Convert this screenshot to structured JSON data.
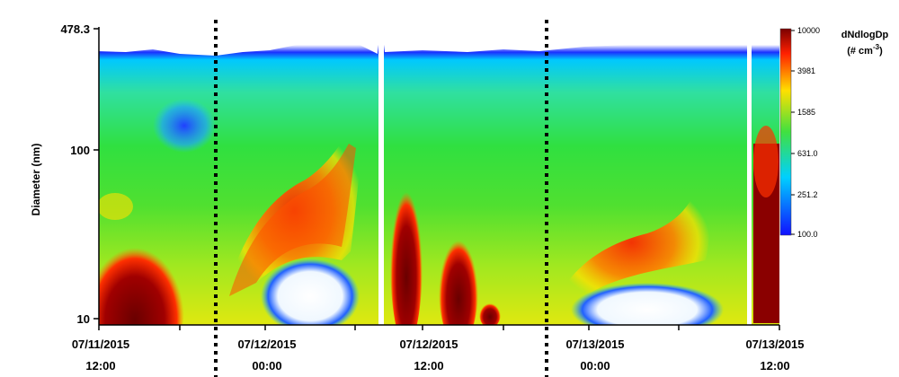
{
  "chart_data": {
    "type": "heatmap",
    "ylabel": "Diameter (nm)",
    "y_scale": "log",
    "ylim": [
      10,
      478.3
    ],
    "y_ticks": [
      "478.3",
      "100",
      "10"
    ],
    "x_ticks": [
      {
        "date": "07/11/2015",
        "time": "12:00"
      },
      {
        "date": "07/12/2015",
        "time": "00:00"
      },
      {
        "date": "07/12/2015",
        "time": "12:00"
      },
      {
        "date": "07/13/2015",
        "time": "00:00"
      },
      {
        "date": "07/13/2015",
        "time": "12:00"
      }
    ],
    "midnight_markers": [
      "07/12/2015 00:00",
      "07/13/2015 00:00"
    ],
    "colorbar": {
      "title_line1": "dNdlogDp",
      "title_line2": "(# cm",
      "title_sup": "-3",
      "title_close": ")",
      "scale": "log",
      "range": [
        100,
        10000
      ],
      "ticks": [
        "10000",
        "3981",
        "1585",
        "631.0",
        "251.2",
        "100.0"
      ]
    },
    "colors": {
      "low": "#1a1aff",
      "mid_low": "#00c8ff",
      "mid": "#20e040",
      "mid_high": "#ffe000",
      "high": "#ff3000",
      "max": "#7a0000",
      "no_data": "#ffffff"
    }
  }
}
